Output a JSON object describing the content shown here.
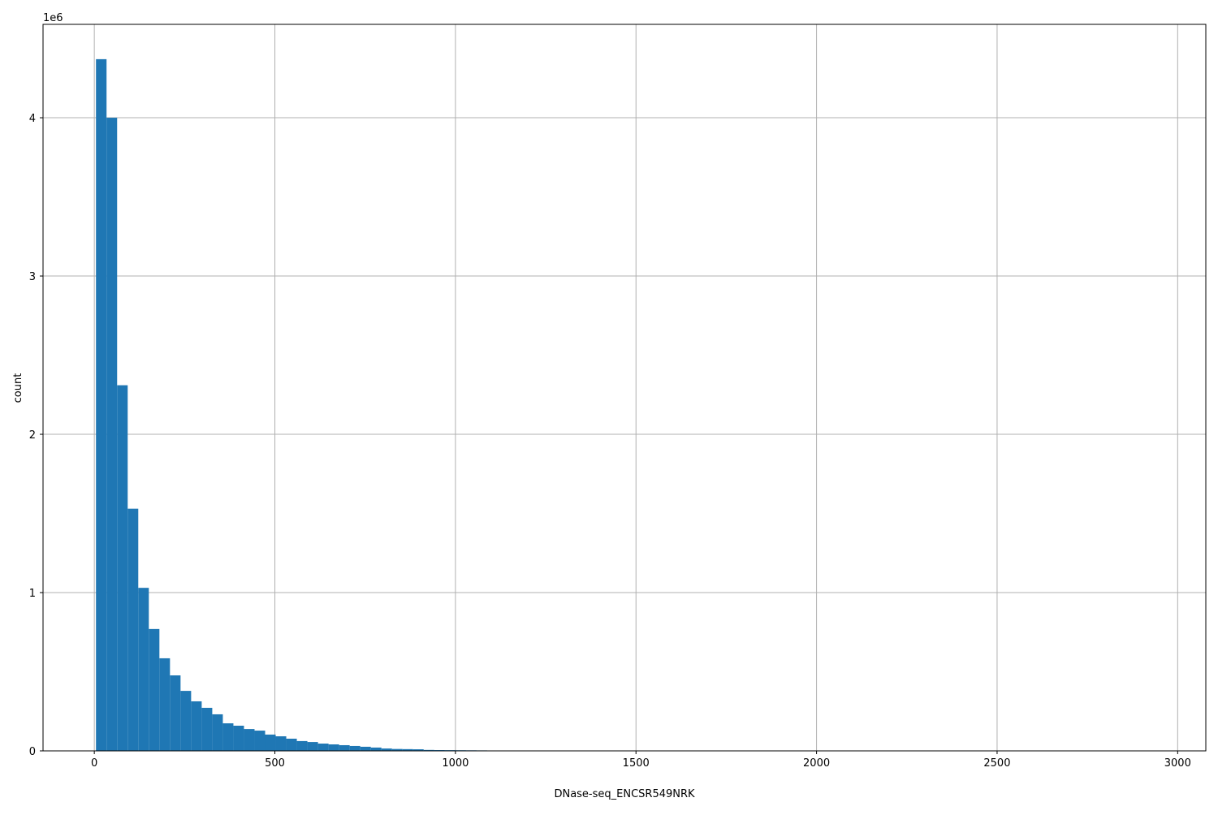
{
  "chart_data": {
    "type": "bar",
    "subtype": "histogram",
    "title": "",
    "xlabel": "DNase-seq_ENCSR549NRK",
    "ylabel": "count",
    "y_offset_label": "1e6",
    "xlim": [
      -142,
      3078
    ],
    "ylim": [
      0,
      4590000
    ],
    "x_ticks": [
      0,
      500,
      1000,
      1500,
      2000,
      2500,
      3000
    ],
    "x_tick_labels": [
      "0",
      "500",
      "1000",
      "1500",
      "2000",
      "2500",
      "3000"
    ],
    "y_ticks": [
      0,
      1000000,
      2000000,
      3000000,
      4000000
    ],
    "y_tick_labels": [
      "0",
      "1",
      "2",
      "3",
      "4"
    ],
    "grid": true,
    "bar_color": "#1f77b4",
    "bin_range": [
      4.6,
      2932
    ],
    "bins": 100,
    "counts": [
      4370000,
      4000000,
      2310000,
      1530000,
      1030000,
      770000,
      585000,
      477000,
      379000,
      313000,
      272000,
      231000,
      174000,
      159000,
      138000,
      128000,
      103000,
      92000,
      77000,
      62000,
      56000,
      46000,
      41000,
      36000,
      31000,
      26000,
      21000,
      15000,
      12000,
      11000,
      10000,
      6000,
      5000,
      4500,
      4000,
      3500,
      3000,
      2000,
      1500,
      1200,
      1000,
      800,
      600,
      500,
      400,
      300,
      250,
      200,
      150,
      120,
      100,
      80,
      60,
      50,
      40,
      30,
      25,
      20,
      15,
      10,
      8,
      6,
      5,
      4,
      3,
      2,
      2,
      1,
      1,
      1,
      1,
      1,
      0,
      0,
      0,
      0,
      0,
      0,
      0,
      0,
      0,
      0,
      0,
      0,
      0,
      0,
      0,
      0,
      0,
      0,
      0,
      0,
      0,
      0,
      0,
      0,
      0,
      0,
      0,
      1
    ]
  }
}
